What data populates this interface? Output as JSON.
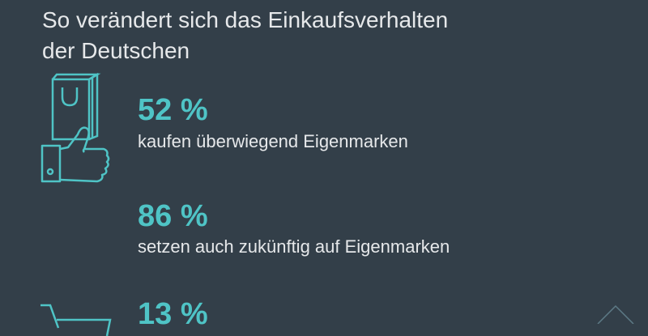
{
  "title_line1": "So verändert sich das Einkaufsverhalten",
  "title_line2": "der Deutschen",
  "accent_color": "#4fc4c6",
  "items": [
    {
      "icon": "shopping-bag-icon",
      "value": "52 %",
      "label": "kaufen überwiegend Eigenmarken"
    },
    {
      "icon": "thumbs-up-icon",
      "value": "86 %",
      "label": "setzen auch zukünftig auf Eigenmarken"
    },
    {
      "icon": "shopping-cart-icon",
      "value": "13 %",
      "label": ""
    }
  ]
}
